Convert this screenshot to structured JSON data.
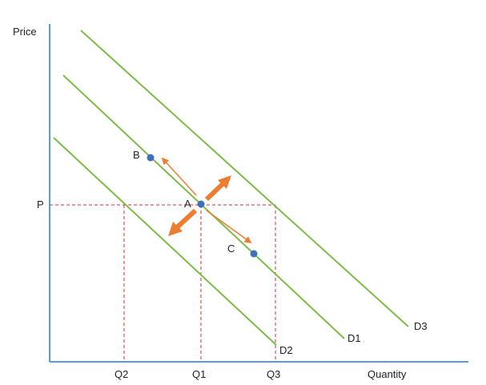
{
  "axes": {
    "y_label": "Price",
    "x_label": "Quantity",
    "price_label": "P",
    "q_labels": [
      "Q2",
      "Q1",
      "Q3"
    ]
  },
  "curves": [
    {
      "label": "D1",
      "color": "#7dbb47"
    },
    {
      "label": "D2",
      "color": "#7dbb47"
    },
    {
      "label": "D3",
      "color": "#7dbb47"
    }
  ],
  "points": [
    {
      "label": "A",
      "color": "#3f6fbf"
    },
    {
      "label": "B",
      "color": "#3f6fbf"
    },
    {
      "label": "C",
      "color": "#3f6fbf"
    }
  ],
  "colors": {
    "axis": "#5b9bd5",
    "guide": "#d0312d",
    "arrow": "#ed7d31"
  }
}
